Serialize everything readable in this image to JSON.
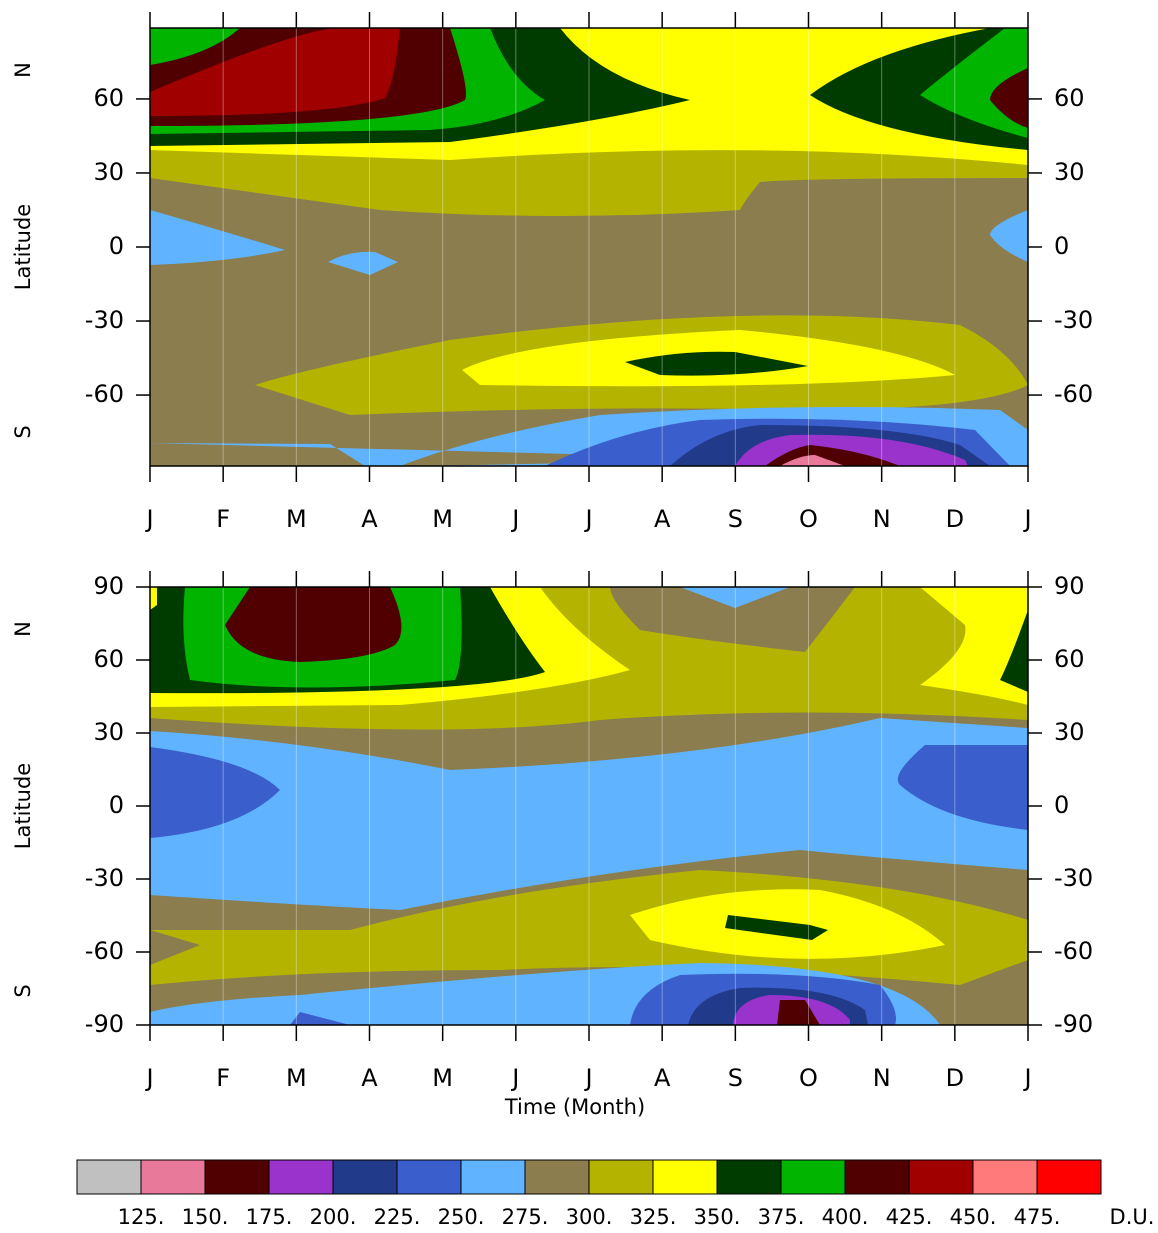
{
  "chart_data": [
    {
      "type": "contour",
      "ylabel": "Latitude",
      "north": "N",
      "south": "S",
      "xlim": [
        0,
        12
      ],
      "ylim": [
        -88.75,
        88.75
      ],
      "xticks": [
        {
          "value": 0,
          "label": "J"
        },
        {
          "value": 1,
          "label": "F"
        },
        {
          "value": 2,
          "label": "M"
        },
        {
          "value": 3,
          "label": "A"
        },
        {
          "value": 4,
          "label": "M"
        },
        {
          "value": 5,
          "label": "J"
        },
        {
          "value": 6,
          "label": "J"
        },
        {
          "value": 7,
          "label": "A"
        },
        {
          "value": 8,
          "label": "S"
        },
        {
          "value": 9,
          "label": "O"
        },
        {
          "value": 10,
          "label": "N"
        },
        {
          "value": 11,
          "label": "D"
        },
        {
          "value": 12,
          "label": "J"
        }
      ],
      "yticks": [
        -60,
        -30,
        0,
        30,
        60
      ]
    },
    {
      "type": "contour",
      "ylabel": "Latitude",
      "xlabel": "Time (Month)",
      "north": "N",
      "south": "S",
      "xlim": [
        0,
        12
      ],
      "ylim": [
        -90,
        90
      ],
      "xticks": [
        {
          "value": 0,
          "label": "J"
        },
        {
          "value": 1,
          "label": "F"
        },
        {
          "value": 2,
          "label": "M"
        },
        {
          "value": 3,
          "label": "A"
        },
        {
          "value": 4,
          "label": "M"
        },
        {
          "value": 5,
          "label": "J"
        },
        {
          "value": 6,
          "label": "J"
        },
        {
          "value": 7,
          "label": "A"
        },
        {
          "value": 8,
          "label": "S"
        },
        {
          "value": 9,
          "label": "O"
        },
        {
          "value": 10,
          "label": "N"
        },
        {
          "value": 11,
          "label": "D"
        },
        {
          "value": 12,
          "label": "J"
        }
      ],
      "yticks": [
        -90,
        -60,
        -30,
        0,
        30,
        60,
        90
      ]
    }
  ],
  "colorbar": {
    "unit": "D.U.",
    "levels": [
      {
        "value": 125,
        "label": "125."
      },
      {
        "value": 150,
        "label": "150."
      },
      {
        "value": 175,
        "label": "175."
      },
      {
        "value": 200,
        "label": "200."
      },
      {
        "value": 225,
        "label": "225."
      },
      {
        "value": 250,
        "label": "250."
      },
      {
        "value": 275,
        "label": "275."
      },
      {
        "value": 300,
        "label": "300."
      },
      {
        "value": 325,
        "label": "325."
      },
      {
        "value": 350,
        "label": "350."
      },
      {
        "value": 375,
        "label": "375."
      },
      {
        "value": 400,
        "label": "400."
      },
      {
        "value": 425,
        "label": "425."
      },
      {
        "value": 450,
        "label": "450."
      },
      {
        "value": 475,
        "label": "475."
      }
    ],
    "colors": [
      "#c0c0c0",
      "#e8799b",
      "#500000",
      "#9933cc",
      "#223a8a",
      "#3a5fcd",
      "#60b4ff",
      "#8b7d4d",
      "#b4b400",
      "#ffff00",
      "#003c00",
      "#00b400",
      "#500000",
      "#a00000",
      "#ff7a7a",
      "#ff0000"
    ]
  }
}
